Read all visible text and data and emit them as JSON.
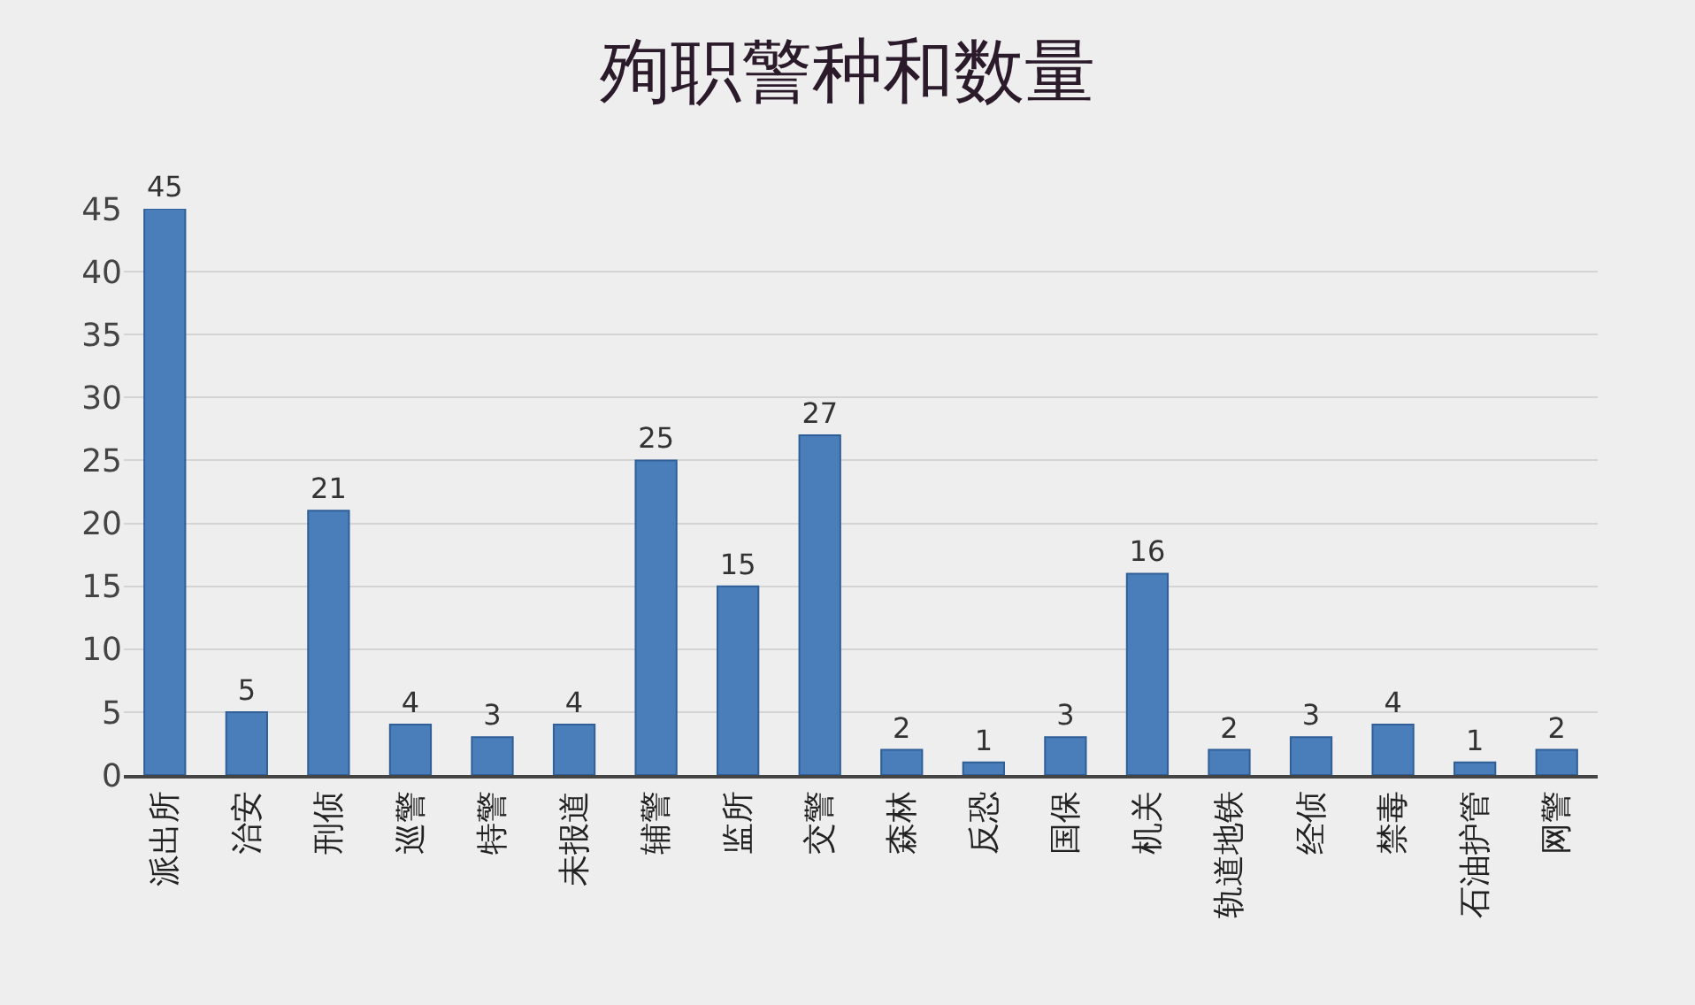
{
  "chart_data": {
    "type": "bar",
    "title": "殉职警种和数量",
    "categories": [
      "派出所",
      "治安",
      "刑侦",
      "巡警",
      "特警",
      "未报道",
      "辅警",
      "监所",
      "交警",
      "森林",
      "反恐",
      "国保",
      "机关",
      "轨道地铁",
      "经侦",
      "禁毒",
      "石油护管",
      "网警"
    ],
    "values": [
      45,
      5,
      21,
      4,
      3,
      4,
      25,
      15,
      27,
      2,
      1,
      3,
      16,
      2,
      3,
      4,
      1,
      2
    ],
    "color": "#4a7ebb",
    "ylim": [
      0,
      45
    ],
    "yticks": [
      0,
      5,
      10,
      15,
      20,
      25,
      30,
      35,
      40,
      45
    ],
    "grid": "y",
    "data_labels": true
  }
}
